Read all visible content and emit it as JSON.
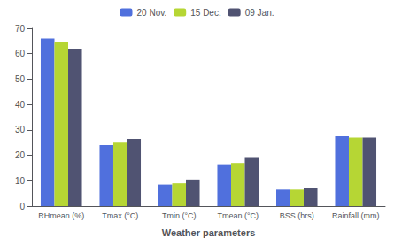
{
  "chart_data": {
    "type": "bar",
    "categories": [
      "RHmean (%)",
      "Tmax (°C)",
      "Tmin (°C)",
      "Tmean (°C)",
      "BSS (hrs)",
      "Rainfall (mm)"
    ],
    "series": [
      {
        "name": "20 Nov.",
        "values": [
          66,
          24,
          8.5,
          16.5,
          6.5,
          27.5
        ]
      },
      {
        "name": "15 Dec.",
        "values": [
          64.5,
          25,
          9,
          17,
          6.5,
          27
        ]
      },
      {
        "name": "09 Jan.",
        "values": [
          62,
          26.5,
          10.5,
          19,
          7,
          27
        ]
      }
    ],
    "xlabel": "Weather parameters",
    "ylim": [
      0,
      70
    ],
    "yticks": [
      0,
      10,
      20,
      30,
      40,
      50,
      60,
      70
    ],
    "grid": false,
    "legend": "top"
  }
}
